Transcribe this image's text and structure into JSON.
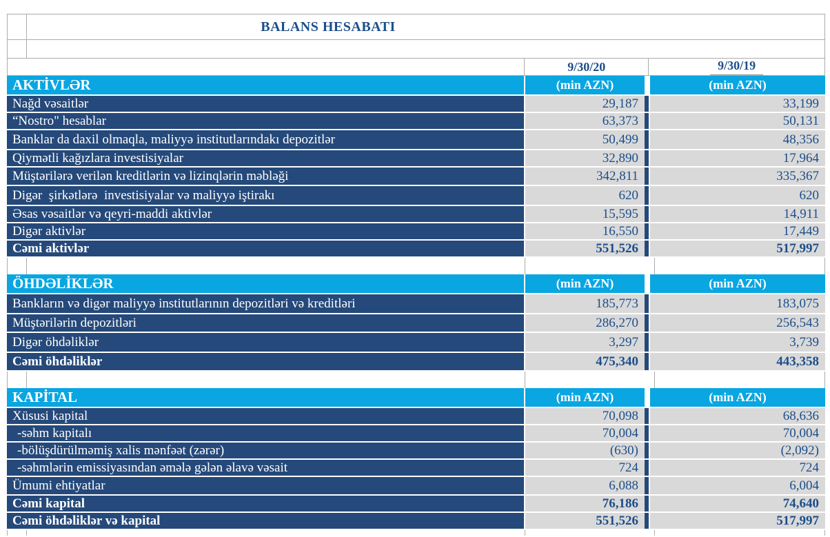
{
  "title": "BALANS HESABATI",
  "columns": [
    {
      "date": "9/30/20",
      "unit": "(min AZN)"
    },
    {
      "date": "9/30/19",
      "unit": "(min AZN)"
    }
  ],
  "colors": {
    "section_header_bg": "#09a6e2",
    "row_label_bg": "#25497a",
    "value_cell_bg": "#d9d9d9",
    "text_blue": "#1c4e8a",
    "gridline": "#ababab"
  },
  "sections": [
    {
      "header": "AKTİVLƏR",
      "rows": [
        {
          "label": "Nağd vəsaitlər",
          "v1": "29,187",
          "v2": "33,199"
        },
        {
          "label": "“Nostro\" hesablar",
          "v1": "63,373",
          "v2": "50,131"
        },
        {
          "label": "Banklar da daxil olmaqla, maliyyə institutlarındakı depozitlər",
          "v1": "50,499",
          "v2": "48,356"
        },
        {
          "label": "Qiymətli kağızlara investisiyalar",
          "v1": "32,890",
          "v2": "17,964"
        },
        {
          "label": "Müştərilərə verilən kreditlərin və lizinqlərin məbləği",
          "v1": "342,811",
          "v2": "335,367"
        },
        {
          "label": "Digər  şirkətlərə  investisiyalar və maliyyə iştirakı",
          "v1": "620",
          "v2": "620"
        },
        {
          "label": "Əsas vəsaitlər və qeyri-maddi aktivlər",
          "v1": "15,595",
          "v2": "14,911"
        },
        {
          "label": "Digər aktivlər",
          "v1": "16,550",
          "v2": "17,449"
        },
        {
          "label": "Cəmi aktivlər",
          "v1": "551,526",
          "v2": "517,997"
        }
      ]
    },
    {
      "header": "ÖHDƏLİKLƏR",
      "rows": [
        {
          "label": "Bankların və digər maliyyə institutlarının depozitləri və kreditləri",
          "v1": "185,773",
          "v2": "183,075"
        },
        {
          "label": "Müştərilərin depozitləri",
          "v1": "286,270",
          "v2": "256,543"
        },
        {
          "label": "Digər öhdəliklər",
          "v1": "3,297",
          "v2": "3,739"
        },
        {
          "label": "Cəmi öhdəliklər",
          "v1": "475,340",
          "v2": "443,358"
        }
      ]
    },
    {
      "header": "KAPİTAL",
      "rows": [
        {
          "label": "Xüsusi kapital",
          "v1": "70,098",
          "v2": "68,636"
        },
        {
          "label": "-səhm kapitalı",
          "v1": "70,004",
          "v2": "70,004"
        },
        {
          "label": "-bölüşdürülməmiş xalis mənfəət (zərər)",
          "v1": "(630)",
          "v2": "(2,092)"
        },
        {
          "label": "-səhmlərin emissiyasından əmələ gələn əlavə vəsait",
          "v1": "724",
          "v2": "724"
        },
        {
          "label": "Ümumi ehtiyatlar",
          "v1": "6,088",
          "v2": "6,004"
        },
        {
          "label": "Cəmi kapital",
          "v1": "76,186",
          "v2": "74,640"
        },
        {
          "label": "Cəmi öhdəliklər və kapital",
          "v1": "551,526",
          "v2": "517,997"
        }
      ]
    }
  ]
}
